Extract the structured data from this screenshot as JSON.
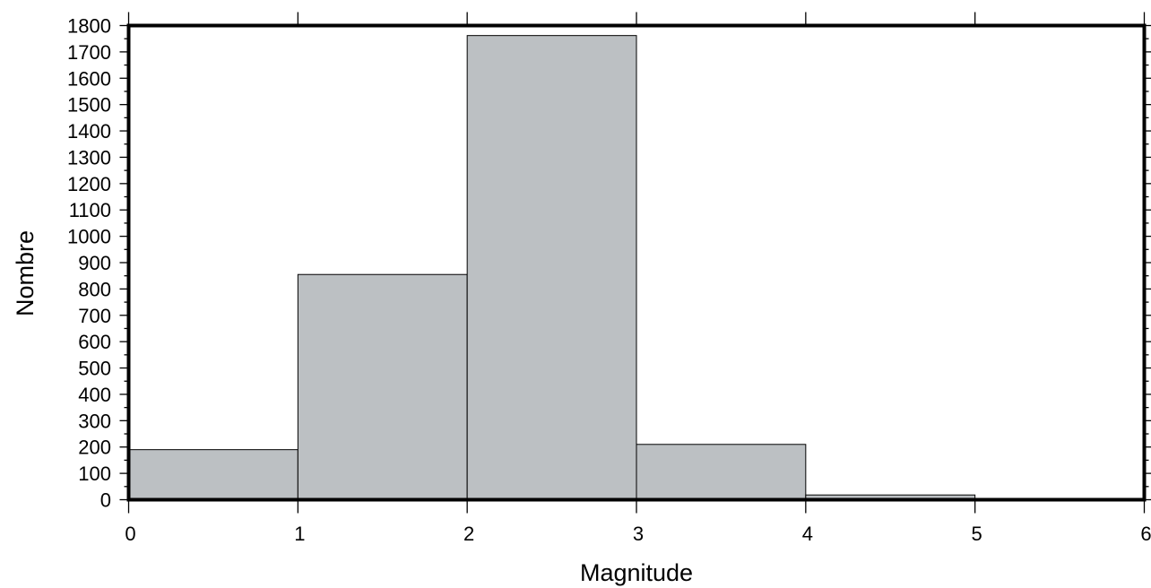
{
  "chart_data": {
    "type": "bar",
    "bin_edges": [
      0,
      1,
      2,
      3,
      4,
      5,
      6
    ],
    "values": [
      190,
      855,
      1762,
      210,
      18,
      0
    ],
    "xlabel": "Magnitude",
    "ylabel": "Nombre",
    "xlim": [
      0,
      6
    ],
    "ylim": [
      0,
      1800
    ],
    "x_ticks": [
      0,
      1,
      2,
      3,
      4,
      5,
      6
    ],
    "y_ticks": [
      0,
      100,
      200,
      300,
      400,
      500,
      600,
      700,
      800,
      900,
      1000,
      1100,
      1200,
      1300,
      1400,
      1500,
      1600,
      1700,
      1800
    ],
    "grid": false,
    "bar_color": "#bcc0c3",
    "bar_edge_color": "#000000",
    "frame_color": "#000000"
  }
}
